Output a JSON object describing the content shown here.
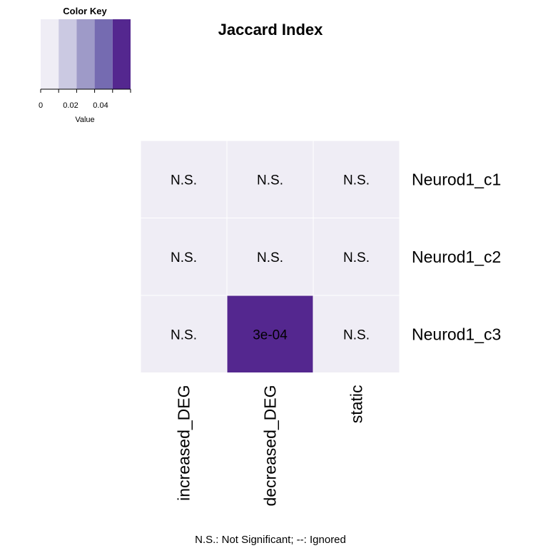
{
  "chart_data": {
    "type": "heatmap",
    "title": "Jaccard Index",
    "rows": [
      "Neurod1_c1",
      "Neurod1_c2",
      "Neurod1_c3"
    ],
    "columns": [
      "increased_DEG",
      "decreased_DEG",
      "static"
    ],
    "cell_labels": [
      [
        "N.S.",
        "N.S.",
        "N.S."
      ],
      [
        "N.S.",
        "N.S.",
        "N.S."
      ],
      [
        "N.S.",
        "3e-04",
        "N.S."
      ]
    ],
    "color_levels": [
      [
        0,
        0,
        0
      ],
      [
        0,
        0,
        0
      ],
      [
        0,
        0.059,
        0
      ]
    ],
    "color_key": {
      "title": "Color Key",
      "xlabel": "Value",
      "tick_values": [
        0,
        0.02,
        0.04
      ],
      "tick_labels": [
        "0",
        "0.02",
        "0.04"
      ],
      "range": [
        0,
        0.06
      ],
      "colors": [
        "#efedf5",
        "#cbc9e2",
        "#9e9ac8",
        "#756bb1",
        "#54278f"
      ]
    },
    "footnote": "N.S.: Not Significant; --: Ignored",
    "grid": true
  }
}
